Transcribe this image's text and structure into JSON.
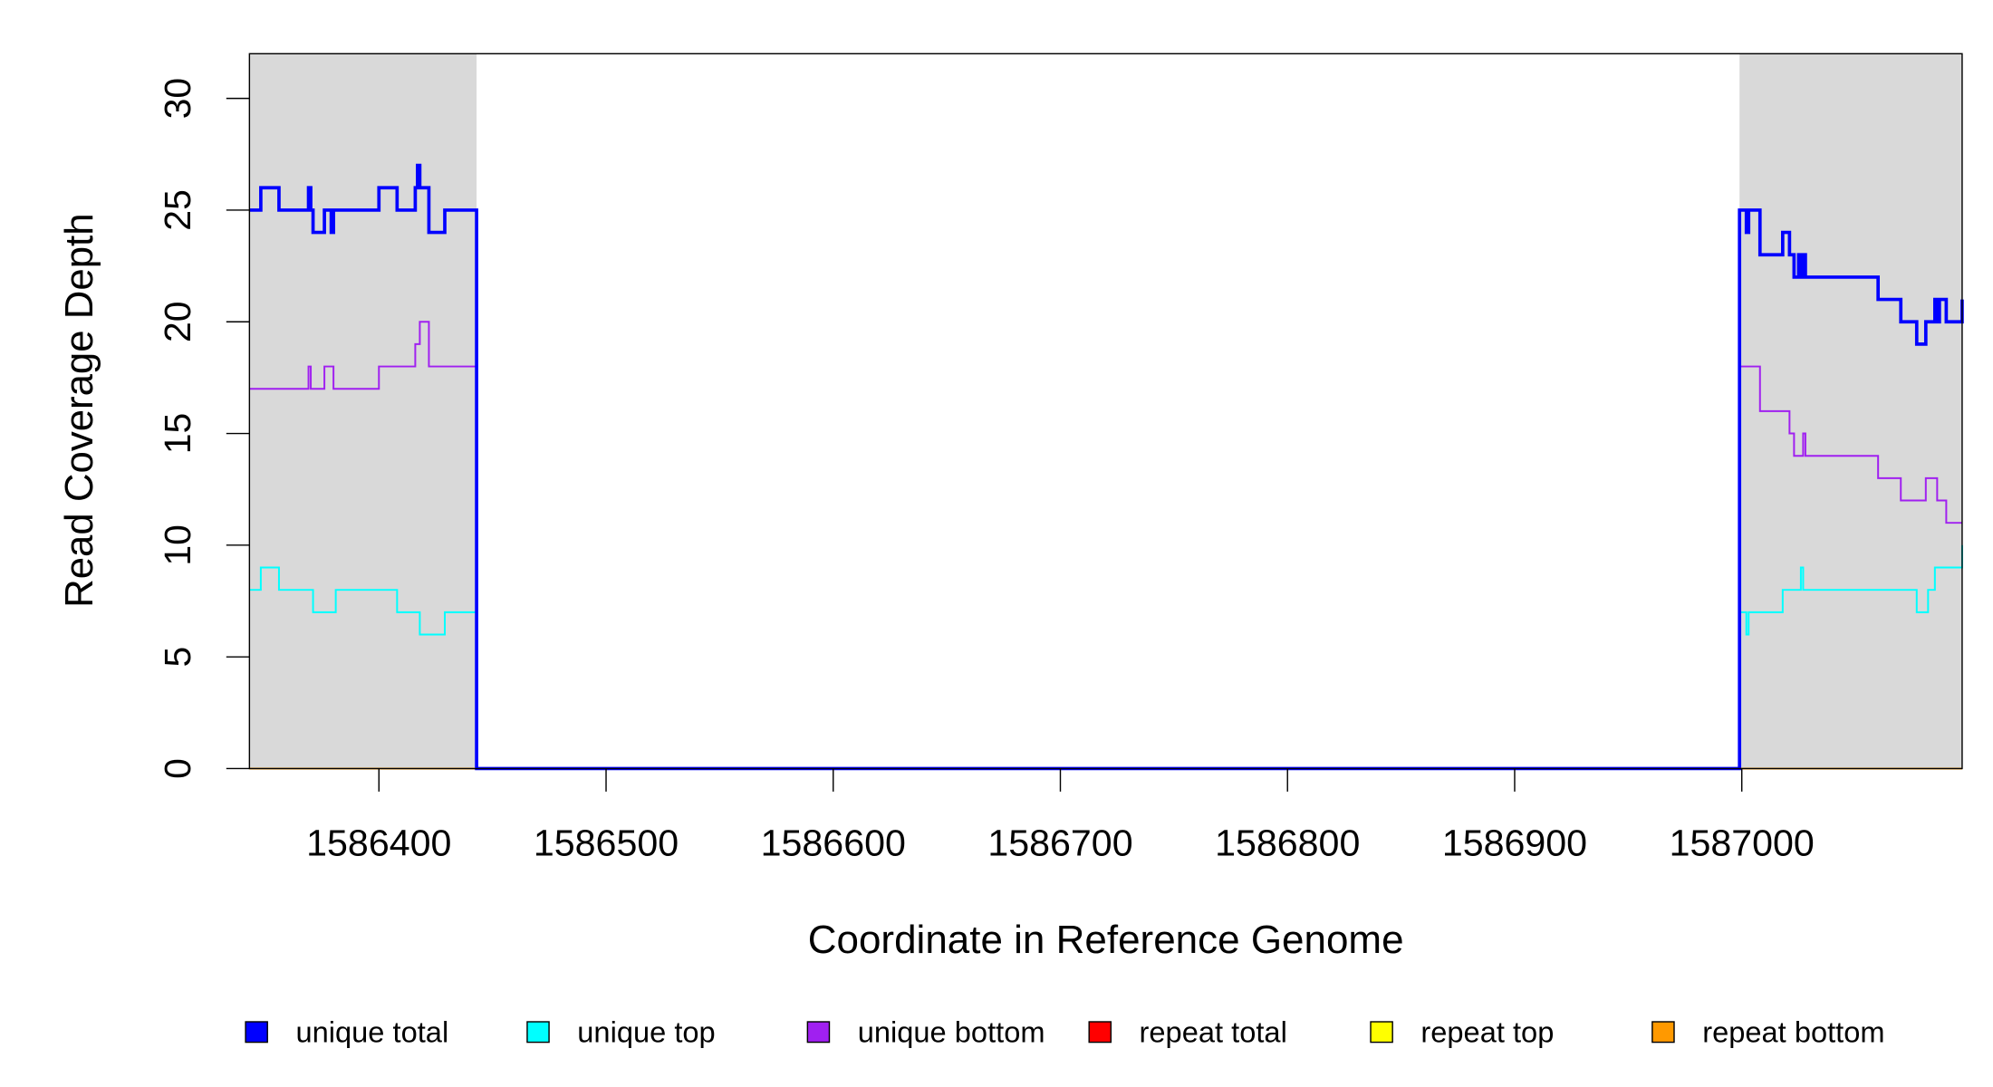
{
  "chart_data": {
    "type": "line",
    "step": "post",
    "x_label": "Coordinate in Reference Genome",
    "y_label": "Read Coverage Depth",
    "xlim": [
      1586343,
      1587097
    ],
    "ylim": [
      0,
      32
    ],
    "xticks": [
      1586400,
      1586500,
      1586600,
      1586700,
      1586800,
      1586900,
      1587000
    ],
    "yticks": [
      0,
      5,
      10,
      15,
      20,
      25,
      30
    ],
    "shaded_regions": [
      [
        1586343,
        1586443
      ],
      [
        1586999,
        1587097
      ]
    ],
    "shade_color": "#d9d9d9",
    "series": [
      {
        "name": "repeat total",
        "color": "#ff0000",
        "x": [
          1586343,
          1586443,
          1586700,
          1586999,
          1587097
        ],
        "values": [
          0,
          0,
          null,
          0,
          0
        ]
      },
      {
        "name": "repeat top",
        "color": "#ffff00",
        "x": [
          1586343,
          1586443,
          1586700,
          1586999,
          1587097
        ],
        "values": [
          0,
          0,
          null,
          0,
          0
        ]
      },
      {
        "name": "repeat bottom",
        "color": "#ff9900",
        "x": [
          1586343,
          1586443,
          1586700,
          1586999,
          1587097
        ],
        "values": [
          0,
          0,
          null,
          0,
          0
        ]
      },
      {
        "name": "unique top",
        "color": "#00ffff",
        "x": [
          1586343,
          1586348,
          1586356,
          1586371,
          1586381,
          1586408,
          1586418,
          1586429,
          1586443,
          1586999,
          1587002,
          1587003,
          1587018,
          1587026,
          1587027,
          1587077,
          1587082,
          1587085,
          1587097
        ],
        "values": [
          8,
          9,
          8,
          7,
          8,
          7,
          6,
          7,
          0,
          7,
          6,
          7,
          8,
          9,
          8,
          7,
          8,
          9,
          10
        ]
      },
      {
        "name": "unique bottom",
        "color": "#a020f0",
        "x": [
          1586343,
          1586369,
          1586370,
          1586376,
          1586380,
          1586400,
          1586416,
          1586418,
          1586422,
          1586443,
          1586999,
          1587008,
          1587021,
          1587023,
          1587027,
          1587028,
          1587060,
          1587070,
          1587081,
          1587086,
          1587090,
          1587097
        ],
        "values": [
          17,
          18,
          17,
          18,
          17,
          18,
          19,
          20,
          18,
          0,
          18,
          16,
          15,
          14,
          15,
          14,
          13,
          12,
          13,
          12,
          11,
          11
        ]
      },
      {
        "name": "unique total",
        "color": "#0000ff",
        "x": [
          1586343,
          1586348,
          1586356,
          1586369,
          1586370,
          1586371,
          1586376,
          1586379,
          1586380,
          1586400,
          1586408,
          1586416,
          1586417,
          1586418,
          1586422,
          1586429,
          1586443,
          1586999,
          1587002,
          1587003,
          1587008,
          1587018,
          1587021,
          1587023,
          1587025,
          1587026,
          1587027,
          1587028,
          1587060,
          1587070,
          1587077,
          1587081,
          1587085,
          1587086,
          1587087,
          1587090,
          1587097
        ],
        "values": [
          25,
          26,
          25,
          26,
          25,
          24,
          25,
          24,
          25,
          26,
          25,
          26,
          27,
          26,
          24,
          25,
          0,
          25,
          24,
          25,
          23,
          24,
          23,
          22,
          23,
          22,
          23,
          22,
          21,
          20,
          19,
          20,
          21,
          20,
          21,
          20,
          21
        ]
      }
    ],
    "legend_order": [
      5,
      3,
      4,
      0,
      1,
      2
    ]
  }
}
